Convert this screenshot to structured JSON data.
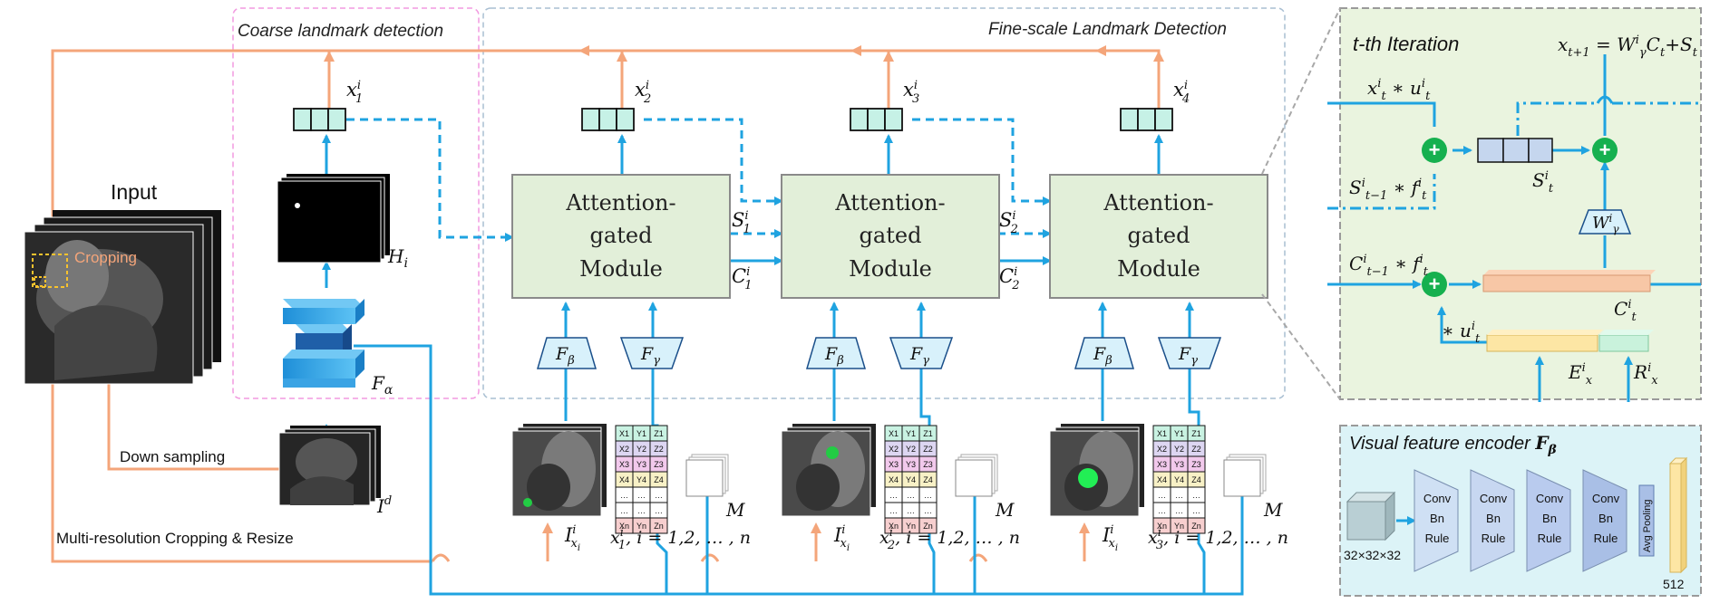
{
  "colors": {
    "orange": "#f4a57a",
    "blue": "#1fa3e0",
    "module_fill": "#e2efd9",
    "module_stroke": "#8a8a8a",
    "vector_fill": "#c6f1e6",
    "coarse_border": "#f29ae0",
    "fine_border": "#a9bfd2",
    "panel_bg": "#eaf4df",
    "encoder_bg": "#dcf3f7",
    "plus_green": "#16b04f",
    "box_blue": "#c5d6ee",
    "box_peach": "#f7c7a6",
    "box_yellow": "#fde6a4",
    "box_mint": "#c9f2dc"
  },
  "labels": {
    "coarse_title": "Coarse landmark detection",
    "fine_title": "Fine-scale Landmark Detection",
    "input": "Input",
    "cropping": "Cropping",
    "down_sampling": "Down sampling",
    "multires": "Multi-resolution Cropping & Resize",
    "module_line1": "Attention-",
    "module_line2": "gated",
    "module_line3": "Module",
    "H": "H",
    "H_sub": "i",
    "I": "I",
    "d": "d",
    "F": "F",
    "alpha": "α",
    "beta": "β",
    "gamma": "γ",
    "M": "M",
    "x": "x",
    "i_sup": "i",
    "S": "S",
    "C": "C",
    "s1": "1",
    "s2": "2",
    "s3": "3",
    "s4": "4",
    "index_eq": ", i = 1,2, … , n"
  },
  "vectors": [
    {
      "label_sub": "1"
    },
    {
      "label_sub": "2"
    },
    {
      "label_sub": "3"
    },
    {
      "label_sub": "4"
    }
  ],
  "coord_table": {
    "rows": [
      [
        "X1",
        "Y1",
        "Z1"
      ],
      [
        "X2",
        "Y2",
        "Z2"
      ],
      [
        "X3",
        "Y3",
        "Z3"
      ],
      [
        "X4",
        "Y4",
        "Z4"
      ],
      [
        "…",
        "…",
        "…"
      ],
      [
        "…",
        "…",
        "…"
      ],
      [
        "Xn",
        "Yn",
        "Zn"
      ]
    ],
    "row_colors": [
      "#c9f2e2",
      "#ddd6f2",
      "#f2c9ec",
      "#f8f1c6",
      "#ffffff",
      "#ffffff",
      "#f7cfcf"
    ]
  },
  "iteration": {
    "title": "t-th Iteration",
    "eq_top": "x",
    "eq_top_sub": "t+1",
    "eq_rest_W": "W",
    "eq_rest_C": "C",
    "eq_rest_S": "S",
    "t": "t",
    "tm1": "t−1",
    "u": "u",
    "f": "f",
    "star": " ∗ ",
    "E": "E",
    "R": "R",
    "plus": "+",
    "eq_plus": "+"
  },
  "encoder": {
    "title": "Visual feature encoder ",
    "title_F": "F",
    "title_sub": "β",
    "input_size": "32×32×32",
    "blocks": [
      {
        "l1": "Conv",
        "l2": "Bn",
        "l3": "Rule",
        "fill": "#cfe0f4"
      },
      {
        "l1": "Conv",
        "l2": "Bn",
        "l3": "Rule",
        "fill": "#c7d7f1"
      },
      {
        "l1": "Conv",
        "l2": "Bn",
        "l3": "Rule",
        "fill": "#b9cbee"
      },
      {
        "l1": "Conv",
        "l2": "Bn",
        "l3": "Rule",
        "fill": "#a9bfe6"
      }
    ],
    "pool": "Avg Pooling",
    "out_size": "512"
  }
}
